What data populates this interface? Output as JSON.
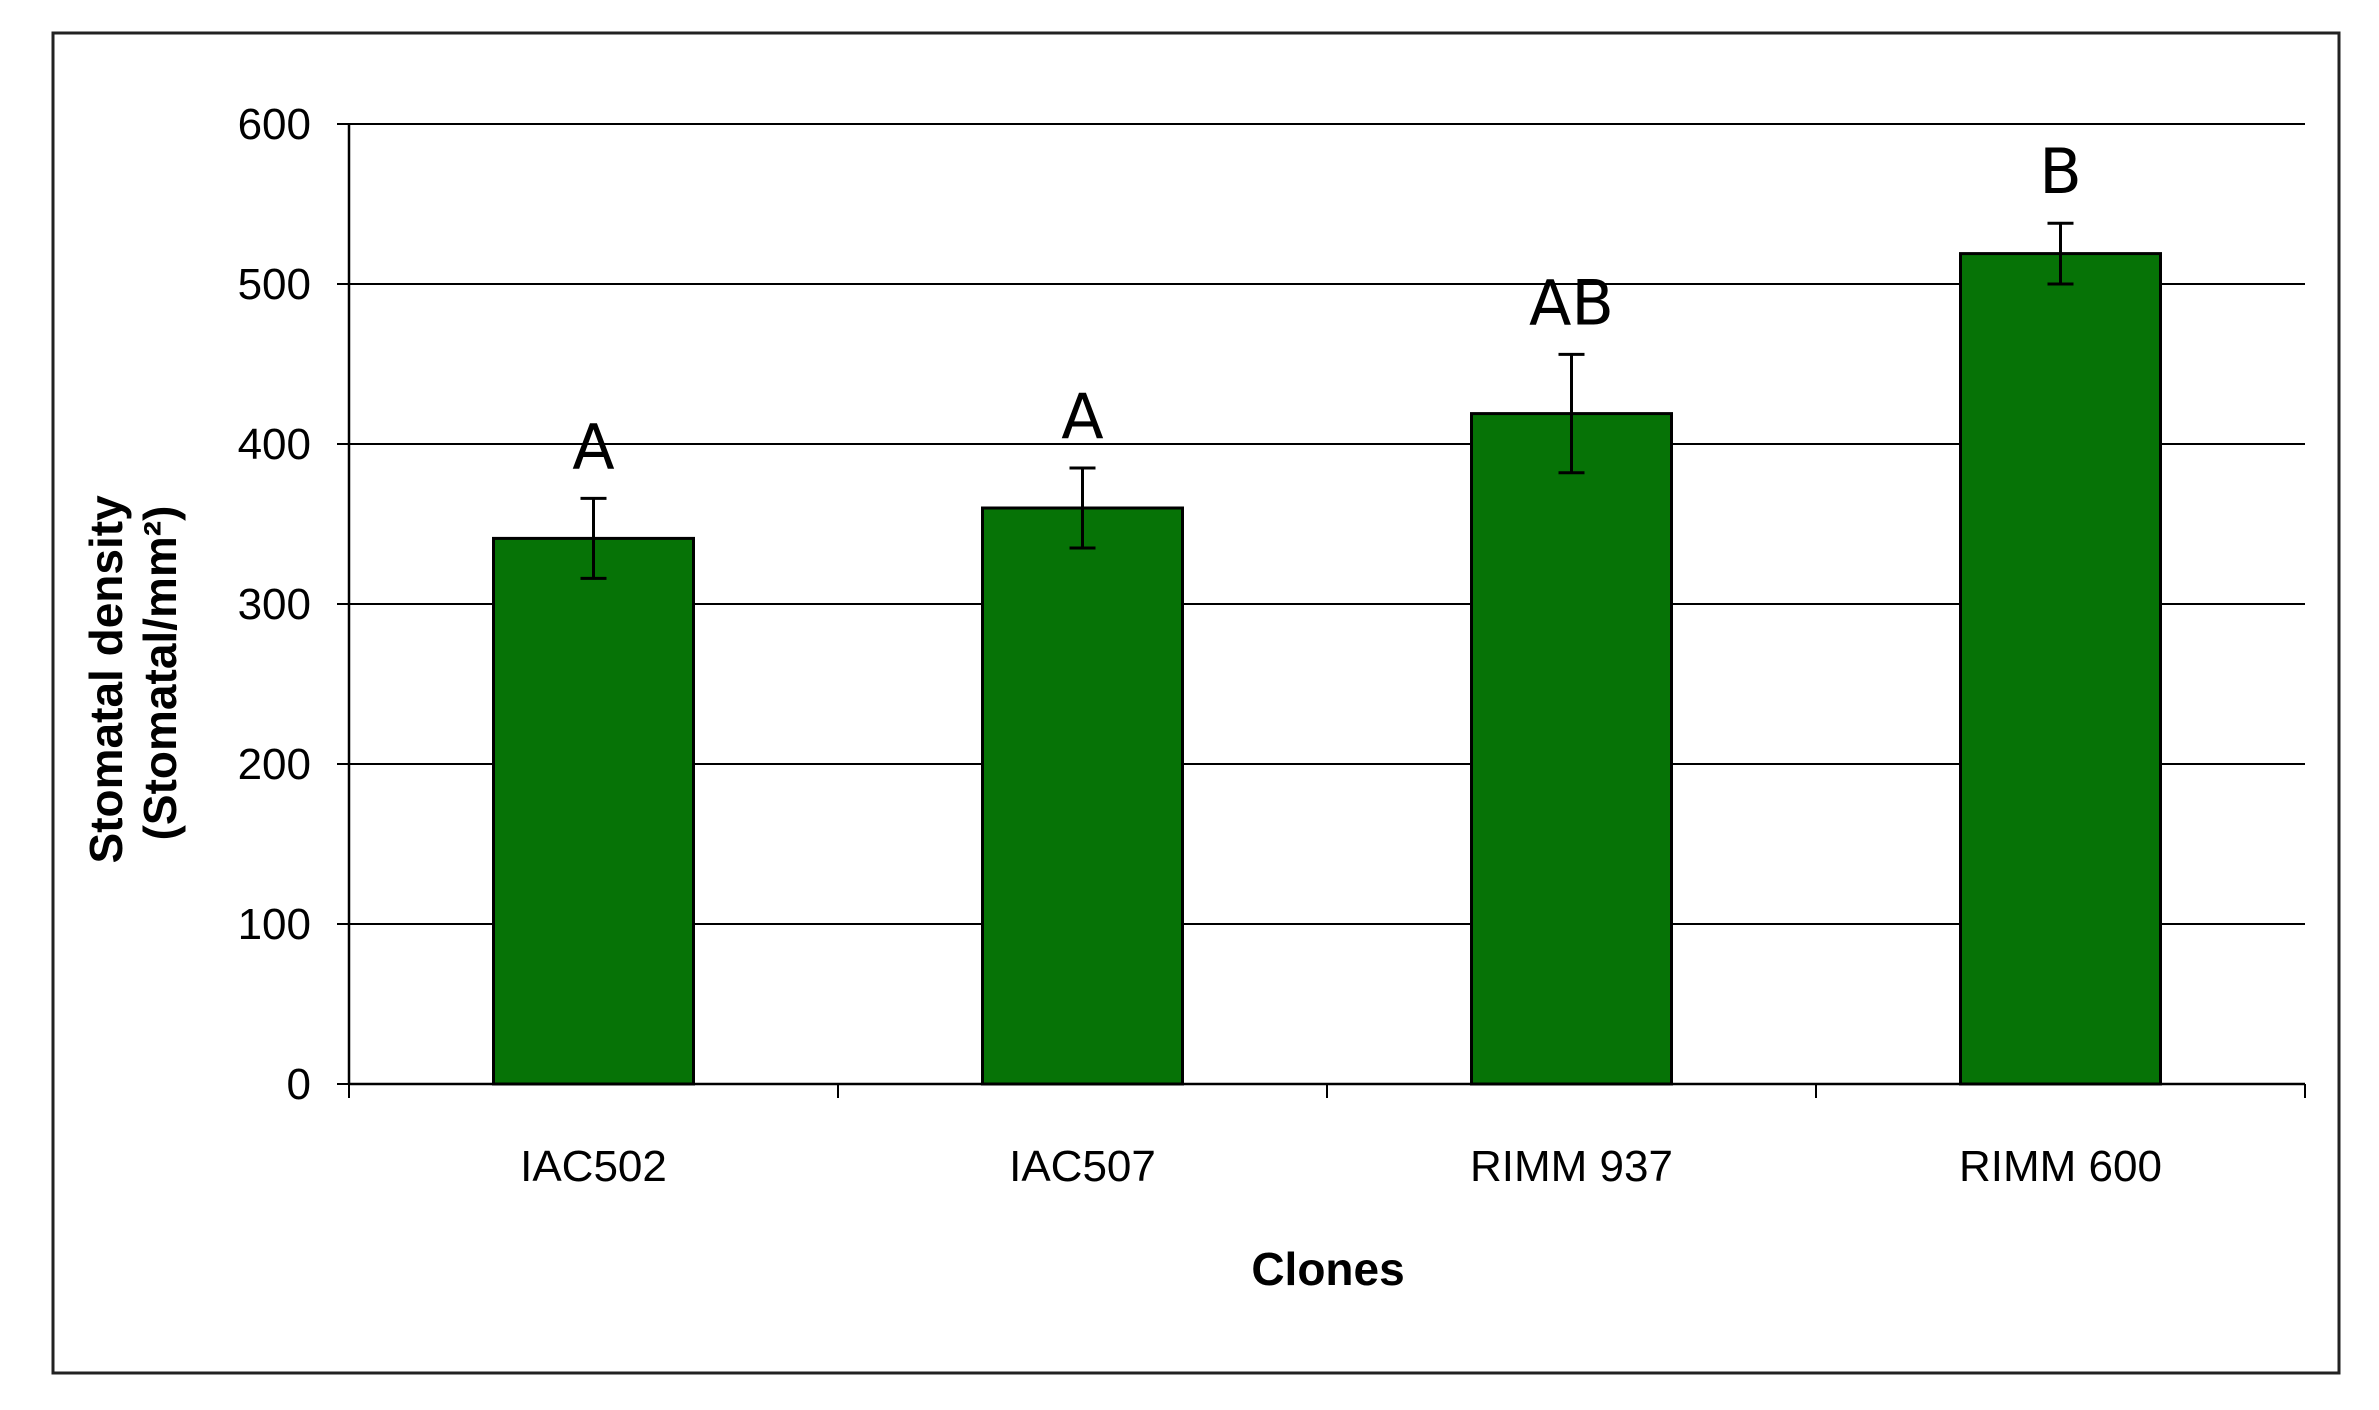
{
  "chart_data": {
    "type": "bar",
    "title": "",
    "xlabel": "Clones",
    "ylabel_line1": "Stomatal density",
    "ylabel_line2": "(Stomatal/mm²)",
    "categories": [
      "IAC502",
      "IAC507",
      "RIMM 937",
      "RIMM 600"
    ],
    "values": [
      341,
      360,
      419,
      519
    ],
    "errors": [
      25,
      25,
      37,
      19
    ],
    "significance_letters": [
      "A",
      "A",
      "AB",
      "B"
    ],
    "ylim": [
      0,
      600
    ],
    "yticks": [
      0,
      100,
      200,
      300,
      400,
      500,
      600
    ],
    "grid": true,
    "bar_color": "#067306",
    "legend": "none"
  }
}
